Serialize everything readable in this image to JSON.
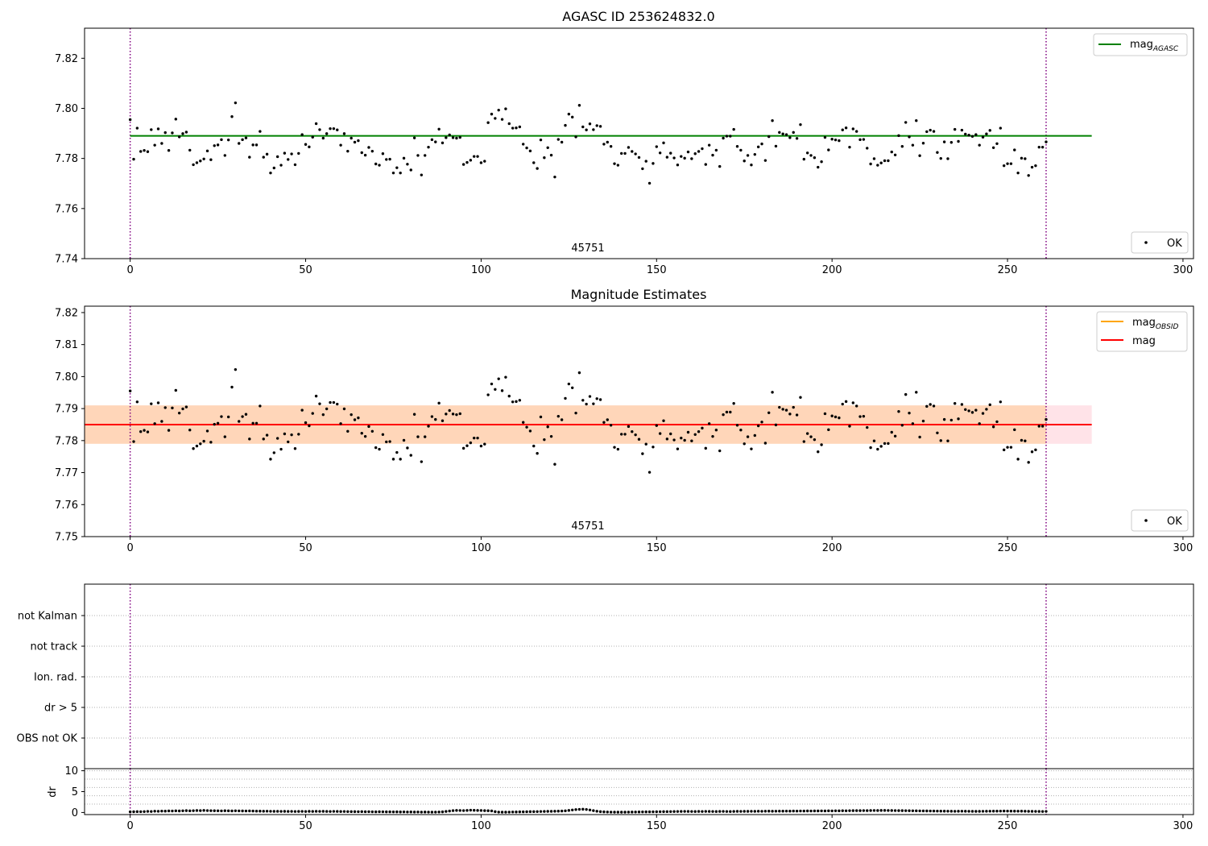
{
  "chart_data": [
    {
      "type": "scatter",
      "title": "AGASC ID 253624832.0",
      "xlabel": "",
      "ylabel": "",
      "xlim": [
        -13,
        303
      ],
      "ylim": [
        7.74,
        7.832
      ],
      "xticks": [
        0,
        50,
        100,
        150,
        200,
        250,
        300
      ],
      "yticks": [
        7.74,
        7.76,
        7.78,
        7.8,
        7.82
      ],
      "ytick_labels": [
        "7.74",
        "7.76",
        "7.78",
        "7.80",
        "7.82"
      ],
      "annotation": "45751",
      "vlines": [
        0,
        261
      ],
      "lines": [
        {
          "name": "mag",
          "subscript": "AGASC",
          "color": "#008000",
          "y": 7.789,
          "x": [
            0,
            274
          ]
        }
      ],
      "series": [
        {
          "name": "OK",
          "color": "#000000",
          "x_start": 0,
          "x_step": 1
        }
      ],
      "legends": [
        {
          "placement": "upper right",
          "entries": [
            {
              "label": "mag",
              "subscript": "AGASC",
              "color": "#008000",
              "marker": "line"
            }
          ]
        },
        {
          "placement": "lower right",
          "entries": [
            {
              "label": "OK",
              "color": "#000000",
              "marker": "dot"
            }
          ]
        }
      ]
    },
    {
      "type": "scatter",
      "title": "Magnitude Estimates",
      "xlabel": "",
      "ylabel": "",
      "xlim": [
        -13,
        303
      ],
      "ylim": [
        7.75,
        7.822
      ],
      "xticks": [
        0,
        50,
        100,
        150,
        200,
        250,
        300
      ],
      "yticks": [
        7.75,
        7.76,
        7.77,
        7.78,
        7.79,
        7.8,
        7.81,
        7.82
      ],
      "ytick_labels": [
        "7.75",
        "7.76",
        "7.77",
        "7.78",
        "7.79",
        "7.80",
        "7.81",
        "7.82"
      ],
      "annotation": "45751",
      "vlines": [
        0,
        261
      ],
      "bands": [
        {
          "color": "#ffc0cb",
          "y0": 7.779,
          "y1": 7.791,
          "x": [
            -13,
            274
          ]
        },
        {
          "color": "#ffa500",
          "y0": 7.779,
          "y1": 7.791,
          "x": [
            -13,
            261
          ]
        }
      ],
      "lines": [
        {
          "name": "mag",
          "subscript": "OBSID",
          "color": "#ffa500",
          "y": 7.785,
          "x": [
            -13,
            261
          ]
        },
        {
          "name": "mag",
          "color": "#ff0000",
          "y": 7.785,
          "x": [
            -13,
            274
          ]
        }
      ],
      "series": [
        {
          "name": "OK",
          "color": "#000000",
          "x_start": 0,
          "x_step": 1
        }
      ],
      "legends": [
        {
          "placement": "upper right",
          "entries": [
            {
              "label": "mag",
              "subscript": "OBSID",
              "color": "#ffa500",
              "marker": "line"
            },
            {
              "label": "mag",
              "color": "#ff0000",
              "marker": "line"
            }
          ]
        },
        {
          "placement": "lower right",
          "entries": [
            {
              "label": "OK",
              "color": "#000000",
              "marker": "dot"
            }
          ]
        }
      ]
    },
    {
      "type": "scatter",
      "title": "",
      "xlim": [
        -13,
        303
      ],
      "categories": [
        "OBS not OK",
        "dr > 5",
        "Ion. rad.",
        "not track",
        "not Kalman"
      ],
      "vlines": [
        0,
        261
      ],
      "grid": true
    },
    {
      "type": "scatter",
      "title": "",
      "xlabel": "",
      "ylabel": "dr",
      "xlim": [
        -13,
        303
      ],
      "ylim": [
        -0.5,
        10.5
      ],
      "xticks": [
        0,
        50,
        100,
        150,
        200,
        250,
        300
      ],
      "yticks": [
        0,
        5,
        10
      ],
      "ytick_labels": [
        "0",
        "5",
        "10"
      ],
      "grid": true,
      "vlines": [
        0,
        261
      ],
      "series": [
        {
          "name": "dr",
          "color": "#000000",
          "x_start": 0,
          "x_step": 1
        }
      ]
    }
  ],
  "mag_values": [
    7.7955,
    7.7797,
    7.7921,
    7.7828,
    7.7832,
    7.7827,
    7.7915,
    7.7853,
    7.7918,
    7.786,
    7.7903,
    7.7832,
    7.7902,
    7.7957,
    7.7886,
    7.7899,
    7.7905,
    7.7833,
    7.7775,
    7.7783,
    7.779,
    7.7798,
    7.783,
    7.7795,
    7.7851,
    7.7854,
    7.7875,
    7.7812,
    7.7874,
    7.7967,
    7.8022,
    7.786,
    7.7875,
    7.7882,
    7.7805,
    7.7854,
    7.7854,
    7.7908,
    7.7805,
    7.7817,
    7.7742,
    7.7762,
    7.7807,
    7.7773,
    7.7821,
    7.7796,
    7.7818,
    7.7775,
    7.782,
    7.7895,
    7.7856,
    7.7846,
    7.7885,
    7.7939,
    7.7915,
    7.7881,
    7.7899,
    7.7919,
    7.7919,
    7.7914,
    7.7853,
    7.7899,
    7.7829,
    7.7881,
    7.7865,
    7.7871,
    7.7823,
    7.7813,
    7.7844,
    7.7829,
    7.7778,
    7.7773,
    7.7819,
    7.7796,
    7.7797,
    7.7742,
    7.7763,
    7.7742,
    7.7801,
    7.7777,
    7.7754,
    7.7882,
    7.7812,
    7.7734,
    7.7812,
    7.7845,
    7.7875,
    7.7866,
    7.7917,
    7.7862,
    7.7883,
    7.7894,
    7.7883,
    7.7881,
    7.7884,
    7.7776,
    7.7784,
    7.7793,
    7.7808,
    7.7808,
    7.7783,
    7.7789,
    7.7943,
    7.7977,
    7.796,
    7.7993,
    7.7956,
    7.7998,
    7.7939,
    7.7921,
    7.7922,
    7.7926,
    7.7857,
    7.7842,
    7.783,
    7.7783,
    7.776,
    7.7874,
    7.7803,
    7.7843,
    7.7813,
    7.7726,
    7.7876,
    7.7865,
    7.7932,
    7.7977,
    7.7965,
    7.7886,
    7.8012,
    7.7926,
    7.7914,
    7.7938,
    7.7915,
    7.7931,
    7.7928,
    7.7857,
    7.7865,
    7.7848,
    7.7779,
    7.7773,
    7.782,
    7.782,
    7.7844,
    7.7828,
    7.7818,
    7.7804,
    7.7759,
    7.7789,
    7.7701,
    7.778,
    7.7847,
    7.7822,
    7.7862,
    7.7805,
    7.7821,
    7.7802,
    7.7774,
    7.7808,
    7.7801,
    7.7826,
    7.7799,
    7.7819,
    7.7828,
    7.7839,
    7.7776,
    7.7853,
    7.7813,
    7.7833,
    7.7768,
    7.7881,
    7.7889,
    7.7889,
    7.7916,
    7.7848,
    7.7833,
    7.779,
    7.7812,
    7.7774,
    7.7816,
    7.7846,
    7.7858,
    7.7792,
    7.7887,
    7.7951,
    7.7849,
    7.7904,
    7.7898,
    7.7895,
    7.7883,
    7.7904,
    7.788,
    7.7935,
    7.7797,
    7.7822,
    7.7812,
    7.7803,
    7.7765,
    7.7787,
    7.7884,
    7.7834,
    7.7877,
    7.7874,
    7.7871,
    7.7914,
    7.7922,
    7.7845,
    7.7918,
    7.7908,
    7.7875,
    7.7876,
    7.7841,
    7.7778,
    7.7799,
    7.7773,
    7.7782,
    7.7791,
    7.7791,
    7.7826,
    7.7814,
    7.7891,
    7.7848,
    7.7944,
    7.7886,
    7.7853,
    7.7951,
    7.7811,
    7.7861,
    7.7907,
    7.7913,
    7.7908,
    7.7824,
    7.78,
    7.7866,
    7.7799,
    7.7864,
    7.7916,
    7.7868,
    7.7913,
    7.7897,
    7.7893,
    7.7888,
    7.7895,
    7.7853,
    7.7885,
    7.7898,
    7.7912,
    7.7843,
    7.7859,
    7.7921,
    7.7771,
    7.7779,
    7.7779,
    7.7834,
    7.7742,
    7.7801,
    7.7799,
    7.7732,
    7.7765,
    7.7771,
    7.7845,
    7.7845,
    7.7866
  ],
  "dr_values": [
    0.15,
    0.18,
    0.21,
    0.19,
    0.22,
    0.26,
    0.24,
    0.31,
    0.29,
    0.34,
    0.33,
    0.38,
    0.36,
    0.4,
    0.37,
    0.41,
    0.44,
    0.4,
    0.43,
    0.47,
    0.45,
    0.5,
    0.46,
    0.43,
    0.42,
    0.41,
    0.39,
    0.42,
    0.4,
    0.38,
    0.41,
    0.39,
    0.37,
    0.36,
    0.38,
    0.35,
    0.33,
    0.32,
    0.3,
    0.31,
    0.29,
    0.27,
    0.28,
    0.26,
    0.27,
    0.25,
    0.26,
    0.24,
    0.25,
    0.26,
    0.24,
    0.27,
    0.25,
    0.28,
    0.26,
    0.27,
    0.25,
    0.24,
    0.26,
    0.25,
    0.23,
    0.24,
    0.22,
    0.21,
    0.2,
    0.19,
    0.21,
    0.18,
    0.19,
    0.17,
    0.16,
    0.18,
    0.17,
    0.15,
    0.16,
    0.14,
    0.15,
    0.13,
    0.14,
    0.12,
    0.13,
    0.11,
    0.12,
    0.1,
    0.11,
    0.1,
    0.09,
    0.1,
    0.12,
    0.15,
    0.25,
    0.35,
    0.45,
    0.5,
    0.48,
    0.46,
    0.5,
    0.55,
    0.52,
    0.5,
    0.48,
    0.45,
    0.42,
    0.38,
    0.2,
    0.1,
    0.08,
    0.09,
    0.1,
    0.12,
    0.13,
    0.15,
    0.16,
    0.18,
    0.2,
    0.21,
    0.22,
    0.24,
    0.25,
    0.27,
    0.28,
    0.3,
    0.32,
    0.35,
    0.4,
    0.5,
    0.6,
    0.7,
    0.75,
    0.78,
    0.72,
    0.6,
    0.45,
    0.3,
    0.2,
    0.15,
    0.12,
    0.1,
    0.09,
    0.08,
    0.08,
    0.09,
    0.1,
    0.11,
    0.12,
    0.13,
    0.14,
    0.15,
    0.16,
    0.17,
    0.18,
    0.19,
    0.2,
    0.21,
    0.22,
    0.23,
    0.24,
    0.25,
    0.26,
    0.25,
    0.24,
    0.23,
    0.25,
    0.24,
    0.26,
    0.25,
    0.24,
    0.23,
    0.25,
    0.26,
    0.24,
    0.23,
    0.25,
    0.27,
    0.26,
    0.28,
    0.27,
    0.29,
    0.28,
    0.3,
    0.29,
    0.31,
    0.32,
    0.3,
    0.31,
    0.33,
    0.32,
    0.34,
    0.33,
    0.35,
    0.34,
    0.36,
    0.35,
    0.37,
    0.36,
    0.38,
    0.37,
    0.39,
    0.38,
    0.4,
    0.39,
    0.41,
    0.4,
    0.42,
    0.41,
    0.43,
    0.44,
    0.45,
    0.44,
    0.46,
    0.45,
    0.47,
    0.48,
    0.47,
    0.49,
    0.5,
    0.48,
    0.47,
    0.46,
    0.45,
    0.44,
    0.43,
    0.42,
    0.41,
    0.4,
    0.39,
    0.38,
    0.37,
    0.36,
    0.35,
    0.34,
    0.33,
    0.32,
    0.31,
    0.3,
    0.29,
    0.3,
    0.31,
    0.3,
    0.29,
    0.28,
    0.27,
    0.28,
    0.29,
    0.3,
    0.31,
    0.32,
    0.33,
    0.34,
    0.35,
    0.34,
    0.33,
    0.32,
    0.31,
    0.32,
    0.3,
    0.28,
    0.27,
    0.26,
    0.25,
    0.24,
    0.26
  ]
}
